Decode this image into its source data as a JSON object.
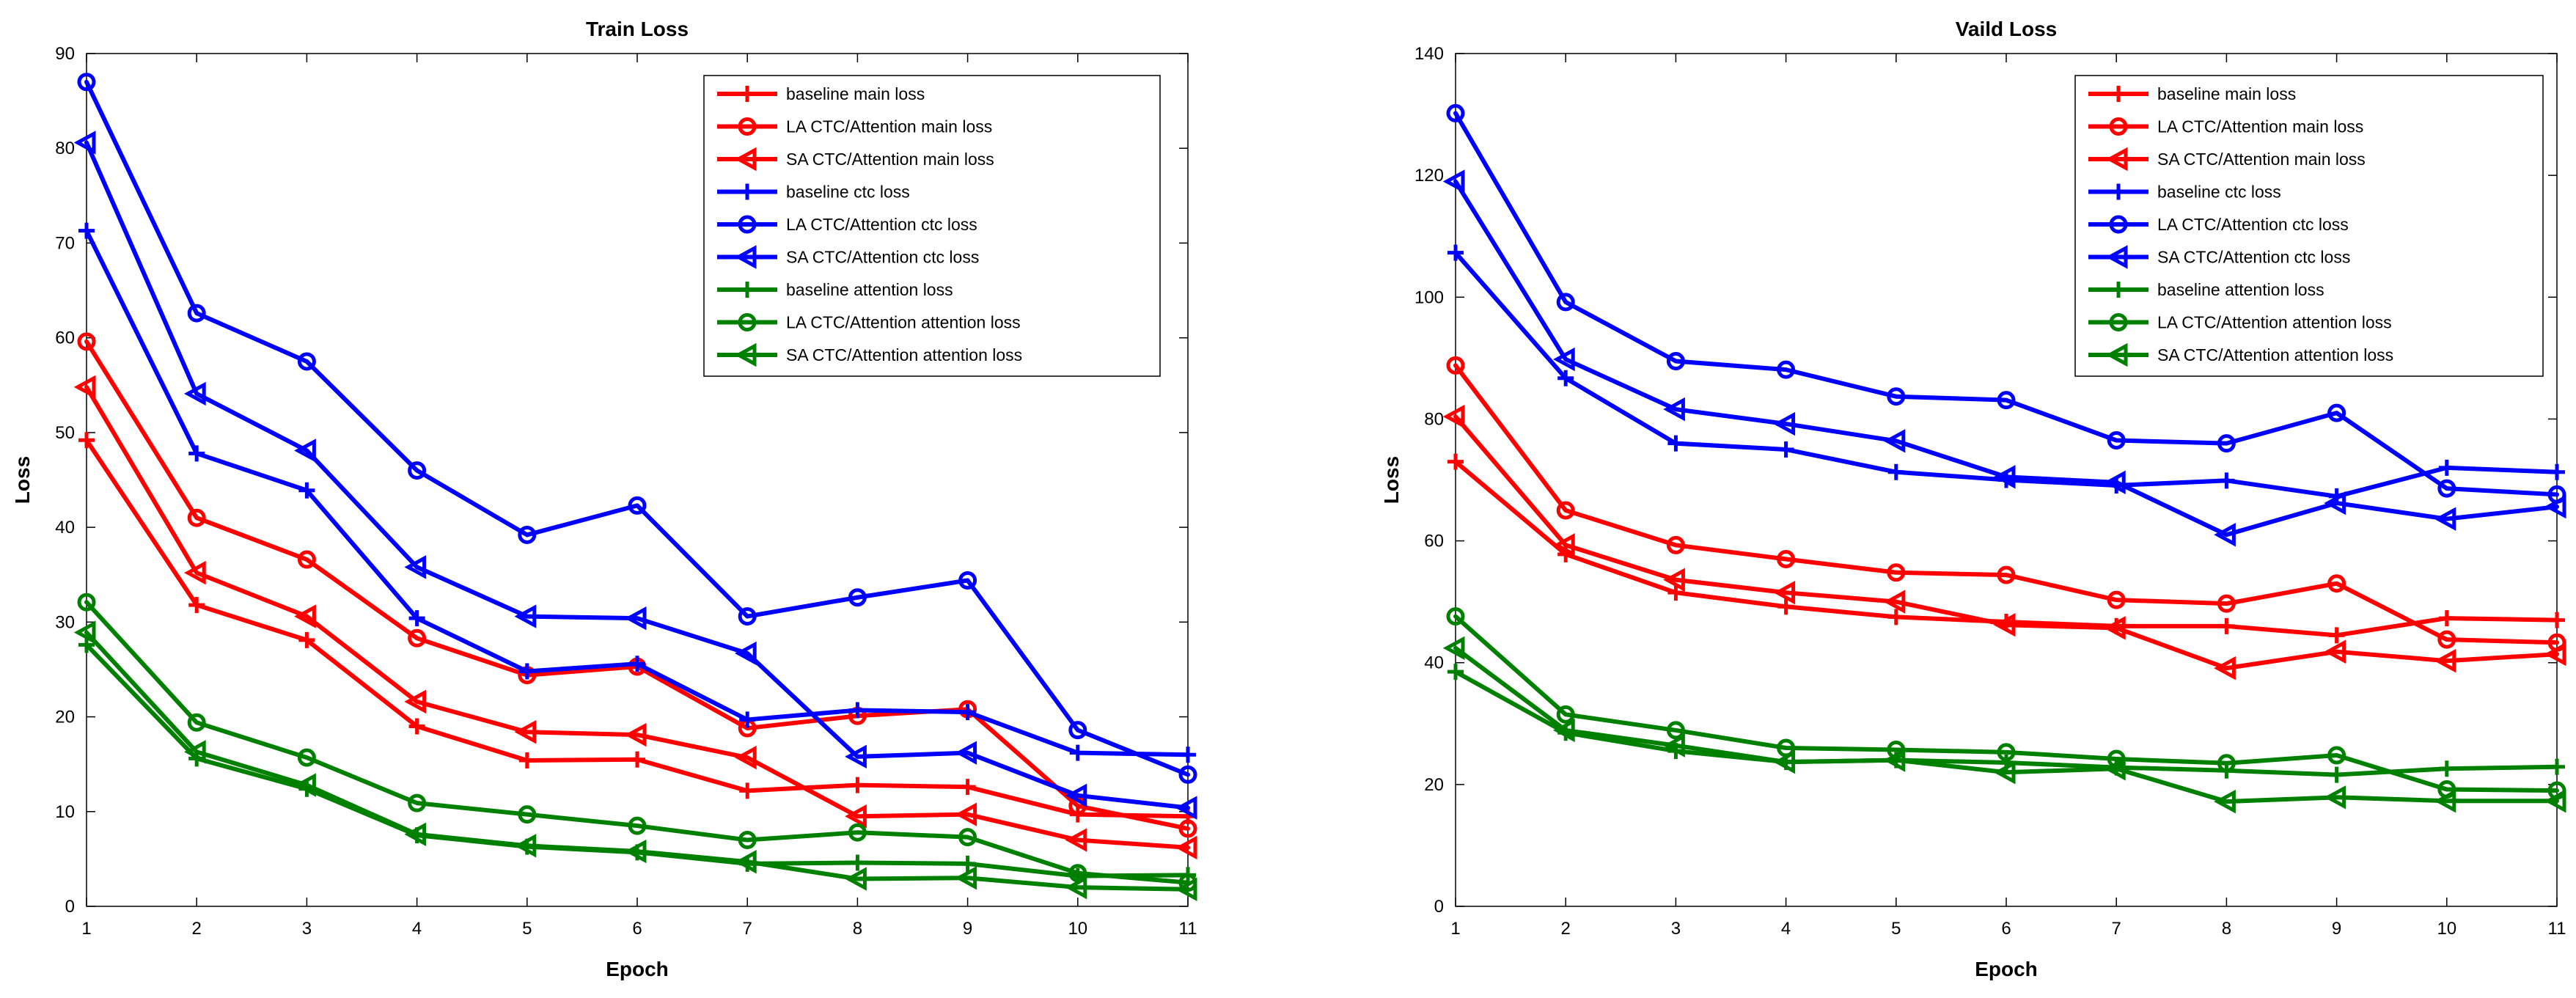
{
  "chart_data": [
    {
      "type": "line",
      "title": "Train Loss",
      "xlabel": "Epoch",
      "ylabel": "Loss",
      "xlim": [
        1,
        11
      ],
      "ylim": [
        0,
        90
      ],
      "xticks": [
        1,
        2,
        3,
        4,
        5,
        6,
        7,
        8,
        9,
        10,
        11
      ],
      "yticks": [
        0,
        10,
        20,
        30,
        40,
        50,
        60,
        70,
        80,
        90
      ],
      "grid": false,
      "legend_position": "top-right",
      "x": [
        1,
        2,
        3,
        4,
        5,
        6,
        7,
        8,
        9,
        10,
        11
      ],
      "series": [
        {
          "name": "baseline main loss",
          "color": "#ff0000",
          "marker": "plus",
          "values": [
            49.2,
            31.8,
            28.1,
            19.0,
            15.4,
            15.5,
            12.2,
            12.8,
            12.6,
            9.7,
            9.5
          ]
        },
        {
          "name": "LA CTC/Attention main loss",
          "color": "#ff0000",
          "marker": "circle",
          "values": [
            59.6,
            41.0,
            36.6,
            28.3,
            24.4,
            25.3,
            18.8,
            20.1,
            20.8,
            10.6,
            8.2
          ]
        },
        {
          "name": "SA CTC/Attention main loss",
          "color": "#ff0000",
          "marker": "triangle-left",
          "values": [
            54.8,
            35.2,
            30.6,
            21.6,
            18.4,
            18.1,
            15.7,
            9.5,
            9.7,
            7.0,
            6.2
          ]
        },
        {
          "name": "baseline ctc loss",
          "color": "#0000ff",
          "marker": "plus",
          "values": [
            71.3,
            47.8,
            43.9,
            30.4,
            24.8,
            25.6,
            19.7,
            20.7,
            20.5,
            16.2,
            16.0
          ]
        },
        {
          "name": "LA CTC/Attention ctc loss",
          "color": "#0000ff",
          "marker": "circle",
          "values": [
            87.0,
            62.6,
            57.5,
            46.0,
            39.2,
            42.3,
            30.6,
            32.6,
            34.4,
            18.6,
            13.9
          ]
        },
        {
          "name": "SA CTC/Attention ctc loss",
          "color": "#0000ff",
          "marker": "triangle-left",
          "values": [
            80.6,
            54.1,
            48.1,
            35.8,
            30.6,
            30.4,
            26.7,
            15.8,
            16.2,
            11.7,
            10.4
          ]
        },
        {
          "name": "baseline attention loss",
          "color": "#008000",
          "marker": "plus",
          "values": [
            27.6,
            15.6,
            12.4,
            7.5,
            6.3,
            5.7,
            4.5,
            4.6,
            4.5,
            3.2,
            3.3
          ]
        },
        {
          "name": "LA CTC/Attention attention loss",
          "color": "#008000",
          "marker": "circle",
          "values": [
            32.1,
            19.4,
            15.7,
            10.9,
            9.7,
            8.5,
            7.0,
            7.8,
            7.3,
            3.5,
            2.5
          ]
        },
        {
          "name": "SA CTC/Attention attention loss",
          "color": "#008000",
          "marker": "triangle-left",
          "values": [
            28.9,
            16.3,
            12.8,
            7.6,
            6.4,
            5.8,
            4.7,
            2.9,
            3.0,
            2.0,
            1.8
          ]
        }
      ]
    },
    {
      "type": "line",
      "title": "Vaild Loss",
      "xlabel": "Epoch",
      "ylabel": "Loss",
      "xlim": [
        1,
        11
      ],
      "ylim": [
        0,
        140
      ],
      "xticks": [
        1,
        2,
        3,
        4,
        5,
        6,
        7,
        8,
        9,
        10,
        11
      ],
      "yticks": [
        0,
        20,
        40,
        60,
        80,
        100,
        120,
        140
      ],
      "grid": false,
      "legend_position": "top-right",
      "x": [
        1,
        2,
        3,
        4,
        5,
        6,
        7,
        8,
        9,
        10,
        11
      ],
      "series": [
        {
          "name": "baseline main loss",
          "color": "#ff0000",
          "marker": "plus",
          "values": [
            73.0,
            57.8,
            51.5,
            49.2,
            47.5,
            46.7,
            46.0,
            46.0,
            44.5,
            47.3,
            47.0
          ]
        },
        {
          "name": "LA CTC/Attention main loss",
          "color": "#ff0000",
          "marker": "circle",
          "values": [
            88.8,
            65.0,
            59.3,
            57.0,
            54.8,
            54.4,
            50.3,
            49.7,
            53.0,
            43.8,
            43.3
          ]
        },
        {
          "name": "SA CTC/Attention main loss",
          "color": "#ff0000",
          "marker": "triangle-left",
          "values": [
            80.4,
            59.3,
            53.6,
            51.5,
            50.0,
            46.2,
            45.7,
            39.1,
            41.8,
            40.3,
            41.4
          ]
        },
        {
          "name": "baseline ctc loss",
          "color": "#0000ff",
          "marker": "plus",
          "values": [
            107.3,
            86.7,
            76.0,
            75.0,
            71.3,
            70.0,
            69.1,
            69.9,
            67.3,
            72.0,
            71.3
          ]
        },
        {
          "name": "LA CTC/Attention ctc loss",
          "color": "#0000ff",
          "marker": "circle",
          "values": [
            130.2,
            99.2,
            89.5,
            88.1,
            83.7,
            83.1,
            76.5,
            76.0,
            81.0,
            68.6,
            67.6
          ]
        },
        {
          "name": "SA CTC/Attention ctc loss",
          "color": "#0000ff",
          "marker": "triangle-left",
          "values": [
            119.0,
            89.8,
            81.6,
            79.2,
            76.4,
            70.5,
            69.6,
            61.0,
            66.2,
            63.6,
            65.6
          ]
        },
        {
          "name": "baseline attention loss",
          "color": "#008000",
          "marker": "plus",
          "values": [
            38.5,
            28.5,
            25.5,
            23.7,
            24.0,
            23.6,
            22.8,
            22.3,
            21.6,
            22.6,
            22.9
          ]
        },
        {
          "name": "LA CTC/Attention attention loss",
          "color": "#008000",
          "marker": "circle",
          "values": [
            47.6,
            31.5,
            28.9,
            26.0,
            25.7,
            25.3,
            24.2,
            23.5,
            24.8,
            19.2,
            19.0
          ]
        },
        {
          "name": "SA CTC/Attention attention loss",
          "color": "#008000",
          "marker": "triangle-left",
          "values": [
            42.4,
            28.9,
            26.4,
            23.7,
            24.0,
            22.0,
            22.6,
            17.2,
            17.9,
            17.3,
            17.3
          ]
        }
      ]
    }
  ]
}
